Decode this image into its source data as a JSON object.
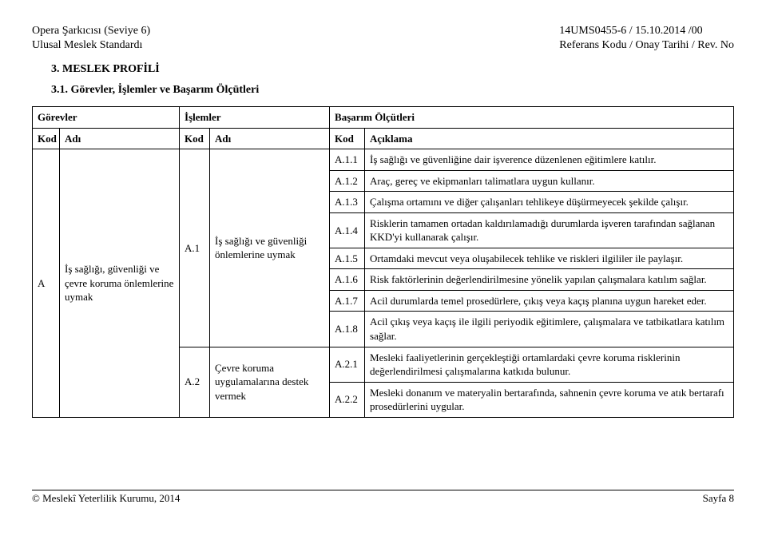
{
  "header": {
    "left_line1": "Opera Şarkıcısı (Seviye 6)",
    "left_line2": "Ulusal Meslek Standardı",
    "right_line1": "14UMS0455-6 / 15.10.2014 /00",
    "right_line2": "Referans Kodu / Onay Tarihi / Rev. No"
  },
  "section_heading": "3.   MESLEK PROFİLİ",
  "sub_heading": "3.1. Görevler, İşlemler ve Başarım Ölçütleri",
  "table": {
    "top": {
      "gorevler": "Görevler",
      "islemler": "İşlemler",
      "basarim": "Başarım Ölçütleri"
    },
    "head": {
      "kod": "Kod",
      "adi": "Adı",
      "aciklama": "Açıklama"
    },
    "gorev": {
      "kod": "A",
      "adi": "İş sağlığı, güvenliği ve çevre koruma önlemlerine uymak"
    },
    "islem1": {
      "kod": "A.1",
      "adi": "İş sağlığı ve güvenliği önlemlerine uymak"
    },
    "islem2": {
      "kod": "A.2",
      "adi": "Çevre koruma uygulamalarına destek vermek"
    },
    "rows": [
      {
        "kod": "A.1.1",
        "text": "İş sağlığı ve güvenliğine dair işverence düzenlenen eğitimlere katılır."
      },
      {
        "kod": "A.1.2",
        "text": "Araç, gereç ve ekipmanları talimatlara uygun kullanır."
      },
      {
        "kod": "A.1.3",
        "text": "Çalışma ortamını ve diğer çalışanları tehlikeye düşürmeyecek şekilde çalışır."
      },
      {
        "kod": "A.1.4",
        "text": "Risklerin tamamen ortadan kaldırılamadığı durumlarda işveren tarafından sağlanan KKD'yi kullanarak çalışır."
      },
      {
        "kod": "A.1.5",
        "text": "Ortamdaki mevcut veya oluşabilecek tehlike ve riskleri ilgililer ile paylaşır."
      },
      {
        "kod": "A.1.6",
        "text": "Risk faktörlerinin değerlendirilmesine yönelik yapılan çalışmalara katılım sağlar."
      },
      {
        "kod": "A.1.7",
        "text": "Acil durumlarda temel prosedürlere, çıkış veya kaçış planına uygun hareket eder."
      },
      {
        "kod": "A.1.8",
        "text": "Acil çıkış veya kaçış ile ilgili periyodik eğitimlere, çalışmalara ve tatbikatlara katılım sağlar."
      },
      {
        "kod": "A.2.1",
        "text": "Mesleki faaliyetlerinin gerçekleştiği ortamlardaki çevre koruma risklerinin değerlendirilmesi çalışmalarına katkıda bulunur."
      },
      {
        "kod": "A.2.2",
        "text": "Mesleki donanım ve materyalin bertarafında, sahnenin çevre koruma ve atık bertarafı prosedürlerini uygular."
      }
    ]
  },
  "footer": {
    "left": "© Meslekî Yeterlilik Kurumu, 2014",
    "right": "Sayfa 8"
  }
}
